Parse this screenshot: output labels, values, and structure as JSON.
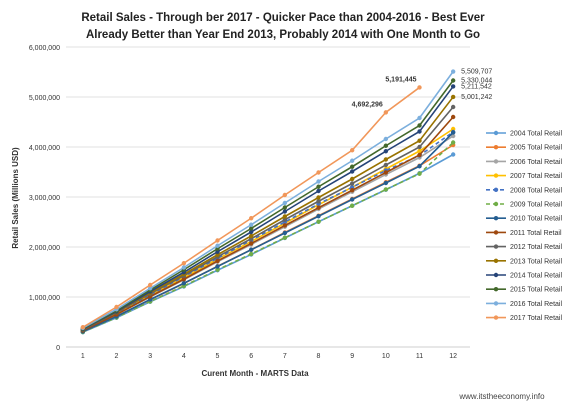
{
  "chart_data": {
    "type": "line",
    "title": "Retail Sales - Through ber 2017 - Quicker Pace than 2004-2016 - Best Ever Already Better than Year End 2013, Probably 2014 with One Month to Go",
    "title_lines": [
      "Retail Sales - Through ber 2017 - Quicker Pace than 2004-2016 - Best Ever",
      "Already Better than Year End 2013, Probably 2014 with One Month to Go"
    ],
    "xlabel": "Curent Month - MARTS Data",
    "ylabel": "Retail Sales (Millions USD)",
    "x": [
      1,
      2,
      3,
      4,
      5,
      6,
      7,
      8,
      9,
      10,
      11,
      12
    ],
    "x_tick_labels": [
      "1",
      "2",
      "3",
      "4",
      "5",
      "6",
      "7",
      "8",
      "9",
      "10",
      "11",
      "12"
    ],
    "ylim": [
      0,
      6000000
    ],
    "y_tick_values": [
      0,
      1000000,
      2000000,
      3000000,
      4000000,
      5000000,
      6000000
    ],
    "y_tick_labels": [
      "0",
      "1,000,000",
      "2,000,000",
      "3,000,000",
      "4,000,000",
      "5,000,000",
      "6,000,000"
    ],
    "grid": "horizontal",
    "legend_position": "right",
    "series": [
      {
        "name": "2004 Total Retail",
        "color": "#5b9bd5",
        "dashed": false,
        "values": [
          296000,
          585000,
          905000,
          1210000,
          1535000,
          1850000,
          2180000,
          2505000,
          2825000,
          3145000,
          3475000,
          3850000
        ]
      },
      {
        "name": "2005 Total Retail",
        "color": "#ed7d31",
        "dashed": false,
        "values": [
          308000,
          613000,
          945000,
          1270000,
          1615000,
          1945000,
          2290000,
          2625000,
          2960000,
          3295000,
          3625000,
          4040000
        ]
      },
      {
        "name": "2006 Total Retail",
        "color": "#a5a5a5",
        "dashed": false,
        "values": [
          326000,
          648000,
          1000000,
          1345000,
          1705000,
          2050000,
          2405000,
          2760000,
          3105000,
          3450000,
          3790000,
          4220000
        ]
      },
      {
        "name": "2007 Total Retail",
        "color": "#ffc000",
        "dashed": false,
        "values": [
          335000,
          667000,
          1030000,
          1385000,
          1760000,
          2110000,
          2475000,
          2845000,
          3195000,
          3560000,
          3920000,
          4360000
        ]
      },
      {
        "name": "2008 Total Retail",
        "color": "#4472c4",
        "dashed": true,
        "values": [
          345000,
          680000,
          1045000,
          1405000,
          1775000,
          2135000,
          2500000,
          2860000,
          3195000,
          3530000,
          3830000,
          4300000
        ]
      },
      {
        "name": "2009 Total Retail",
        "color": "#70ad47",
        "dashed": true,
        "values": [
          300000,
          590000,
          910000,
          1220000,
          1545000,
          1860000,
          2185000,
          2505000,
          2825000,
          3150000,
          3465000,
          4090000
        ]
      },
      {
        "name": "2010 Total Retail",
        "color": "#255e91",
        "dashed": false,
        "values": [
          310000,
          610000,
          950000,
          1275000,
          1610000,
          1945000,
          2280000,
          2615000,
          2950000,
          3280000,
          3615000,
          4290000
        ]
      },
      {
        "name": "2011 Total Retail",
        "color": "#9e480e",
        "dashed": false,
        "values": [
          330000,
          650000,
          1010000,
          1355000,
          1720000,
          2070000,
          2430000,
          2785000,
          3135000,
          3490000,
          3840000,
          4600000
        ]
      },
      {
        "name": "2012 Total Retail",
        "color": "#636363",
        "dashed": false,
        "values": [
          345000,
          690000,
          1065000,
          1425000,
          1805000,
          2165000,
          2545000,
          2915000,
          3270000,
          3640000,
          4000000,
          4800000
        ]
      },
      {
        "name": "2013 Total Retail",
        "color": "#997300",
        "dashed": false,
        "values": [
          355000,
          700000,
          1085000,
          1455000,
          1845000,
          2220000,
          2610000,
          2990000,
          3360000,
          3750000,
          4125000,
          5001242
        ]
      },
      {
        "name": "2014 Total Retail",
        "color": "#264478",
        "dashed": false,
        "values": [
          360000,
          710000,
          1110000,
          1495000,
          1905000,
          2300000,
          2710000,
          3120000,
          3510000,
          3915000,
          4310000,
          5211542
        ]
      },
      {
        "name": "2015 Total Retail",
        "color": "#43682b",
        "dashed": false,
        "values": [
          370000,
          730000,
          1140000,
          1545000,
          1965000,
          2370000,
          2790000,
          3205000,
          3605000,
          4025000,
          4430000,
          5330044
        ]
      },
      {
        "name": "2016 Total Retail",
        "color": "#7cafdd",
        "dashed": false,
        "values": [
          380000,
          755000,
          1175000,
          1590000,
          2025000,
          2445000,
          2880000,
          3310000,
          3725000,
          4160000,
          4580000,
          5509707
        ]
      },
      {
        "name": "2017 Total Retail",
        "color": "#f1975a",
        "dashed": false,
        "values": [
          395000,
          800000,
          1240000,
          1675000,
          2130000,
          2575000,
          3040000,
          3490000,
          3935000,
          4692296,
          5191445,
          null
        ]
      }
    ],
    "annotations": [
      {
        "text": "4,692,296",
        "series": "2017 Total Retail",
        "x": 10,
        "y": 4692296
      },
      {
        "text": "5,191,445",
        "series": "2017 Total Retail",
        "x": 11,
        "y": 5191445
      },
      {
        "text": "5,509,707",
        "series": "2016 Total Retail",
        "x": 12,
        "y": 5509707
      },
      {
        "text": "5,330,044",
        "series": "2015 Total Retail",
        "x": 12,
        "y": 5330044
      },
      {
        "text": "5,211,542",
        "series": "2014 Total Retail",
        "x": 12,
        "y": 5211542
      },
      {
        "text": "5,001,242",
        "series": "2013 Total Retail",
        "x": 12,
        "y": 5001242
      }
    ]
  },
  "watermark": "www.itstheeconomy.info"
}
